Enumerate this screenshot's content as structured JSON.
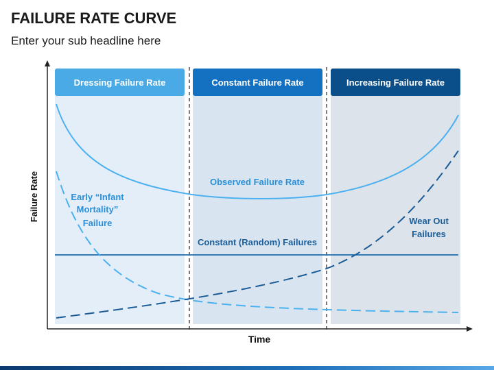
{
  "header": {
    "title": "FAILURE RATE CURVE",
    "subtitle": "Enter your sub headline here"
  },
  "axes": {
    "y_label": "Failure Rate",
    "x_label": "Time"
  },
  "phases": [
    {
      "label": "Dressing Failure Rate",
      "color": "#4aaae6"
    },
    {
      "label": "Constant Failure Rate",
      "color": "#1470c0"
    },
    {
      "label": "Increasing Failure Rate",
      "color": "#0b4f8a"
    }
  ],
  "curves": {
    "observed": {
      "label": "Observed Failure Rate",
      "color": "#4ab0ef"
    },
    "constant": {
      "label": "Constant (Random) Failures",
      "color": "#1d6aa8"
    },
    "infant": {
      "label_lines": [
        "Early “Infant",
        "Mortality”",
        "Failure"
      ],
      "color": "#4ab0ef"
    },
    "wearout": {
      "label_lines": [
        "Wear Out",
        "Failures"
      ],
      "color": "#1a5a96"
    }
  },
  "colors": {
    "panel_1": "#e3eef8",
    "panel_2": "#d8e5f0",
    "panel_3": "#dce3ea",
    "axis": "#222222",
    "label_blue": "#2a8fd8",
    "label_dark": "#1b5e99"
  }
}
